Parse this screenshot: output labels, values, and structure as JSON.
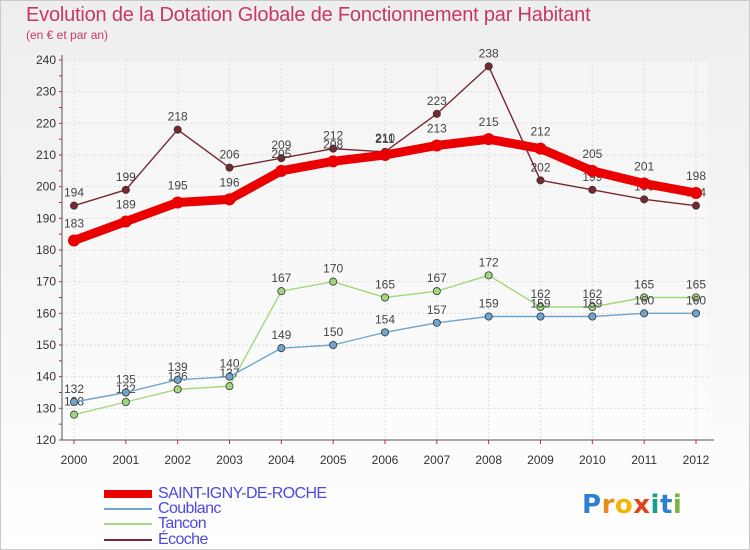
{
  "title": "Evolution de la Dotation Globale de Fonctionnement par Habitant",
  "subtitle": "(en € et par an)",
  "logo": {
    "letters": [
      "P",
      "r",
      "o",
      "x",
      "i",
      "t",
      "i"
    ],
    "colors": [
      "#2f7fd0",
      "#e58c1c",
      "#f2b705",
      "#e2431f",
      "#1a9c8f",
      "#2f7fd0",
      "#7cb342"
    ]
  },
  "chart_data": {
    "type": "line",
    "x": [
      "2000",
      "2001",
      "2002",
      "2003",
      "2004",
      "2005",
      "2006",
      "2007",
      "2008",
      "2009",
      "2010",
      "2011",
      "2012"
    ],
    "ylim": [
      120,
      240
    ],
    "yticks": [
      "120",
      "130",
      "140",
      "150",
      "160",
      "170",
      "180",
      "190",
      "200",
      "210",
      "220",
      "230",
      "240"
    ],
    "grid": true,
    "legend_position": "bottom-left",
    "series": [
      {
        "name": "Écoche",
        "color": "#7a2630",
        "values": [
          194,
          199,
          218,
          206,
          209,
          212,
          211,
          223,
          238,
          202,
          199,
          196,
          194
        ],
        "labels": [
          "194",
          "199",
          "218",
          "206",
          "209",
          "212",
          "211",
          "223",
          "238",
          "202",
          "199",
          "196",
          "194"
        ]
      },
      {
        "name": "Tancon",
        "color": "#a2d87c",
        "values": [
          128,
          132,
          136,
          137,
          167,
          170,
          165,
          167,
          172,
          162,
          162,
          165,
          165
        ],
        "labels": [
          "128",
          "132",
          "136",
          "137",
          "167",
          "170",
          "165",
          "167",
          "172",
          "162",
          "162",
          "165",
          "165"
        ]
      },
      {
        "name": "Coublanc",
        "color": "#6fa6cf",
        "values": [
          132,
          135,
          139,
          140,
          149,
          150,
          154,
          157,
          159,
          159,
          159,
          160,
          160
        ],
        "labels": [
          "132",
          "135",
          "139",
          "140",
          "149",
          "150",
          "154",
          "157",
          "159",
          "159",
          "159",
          "160",
          "160"
        ]
      },
      {
        "name": "SAINT-IGNY-DE-ROCHE",
        "color": "#ea0000",
        "values": [
          183,
          189,
          195,
          196,
          205,
          208,
          210,
          213,
          215,
          212,
          205,
          201,
          198
        ],
        "labels": [
          "183",
          "189",
          "195",
          "196",
          "205",
          "208",
          "210",
          "213",
          "215",
          "212",
          "205",
          "201",
          "198"
        ]
      }
    ],
    "legend": [
      {
        "name": "SAINT-IGNY-DE-ROCHE",
        "color": "#ea0000",
        "text_color": "#4b4bdc"
      },
      {
        "name": "Coublanc",
        "color": "#6fa6cf",
        "text_color": "#4b4bdc"
      },
      {
        "name": "Tancon",
        "color": "#a2d87c",
        "text_color": "#4b4bdc"
      },
      {
        "name": "Écoche",
        "color": "#7a2630",
        "text_color": "#4b4bdc"
      }
    ]
  }
}
